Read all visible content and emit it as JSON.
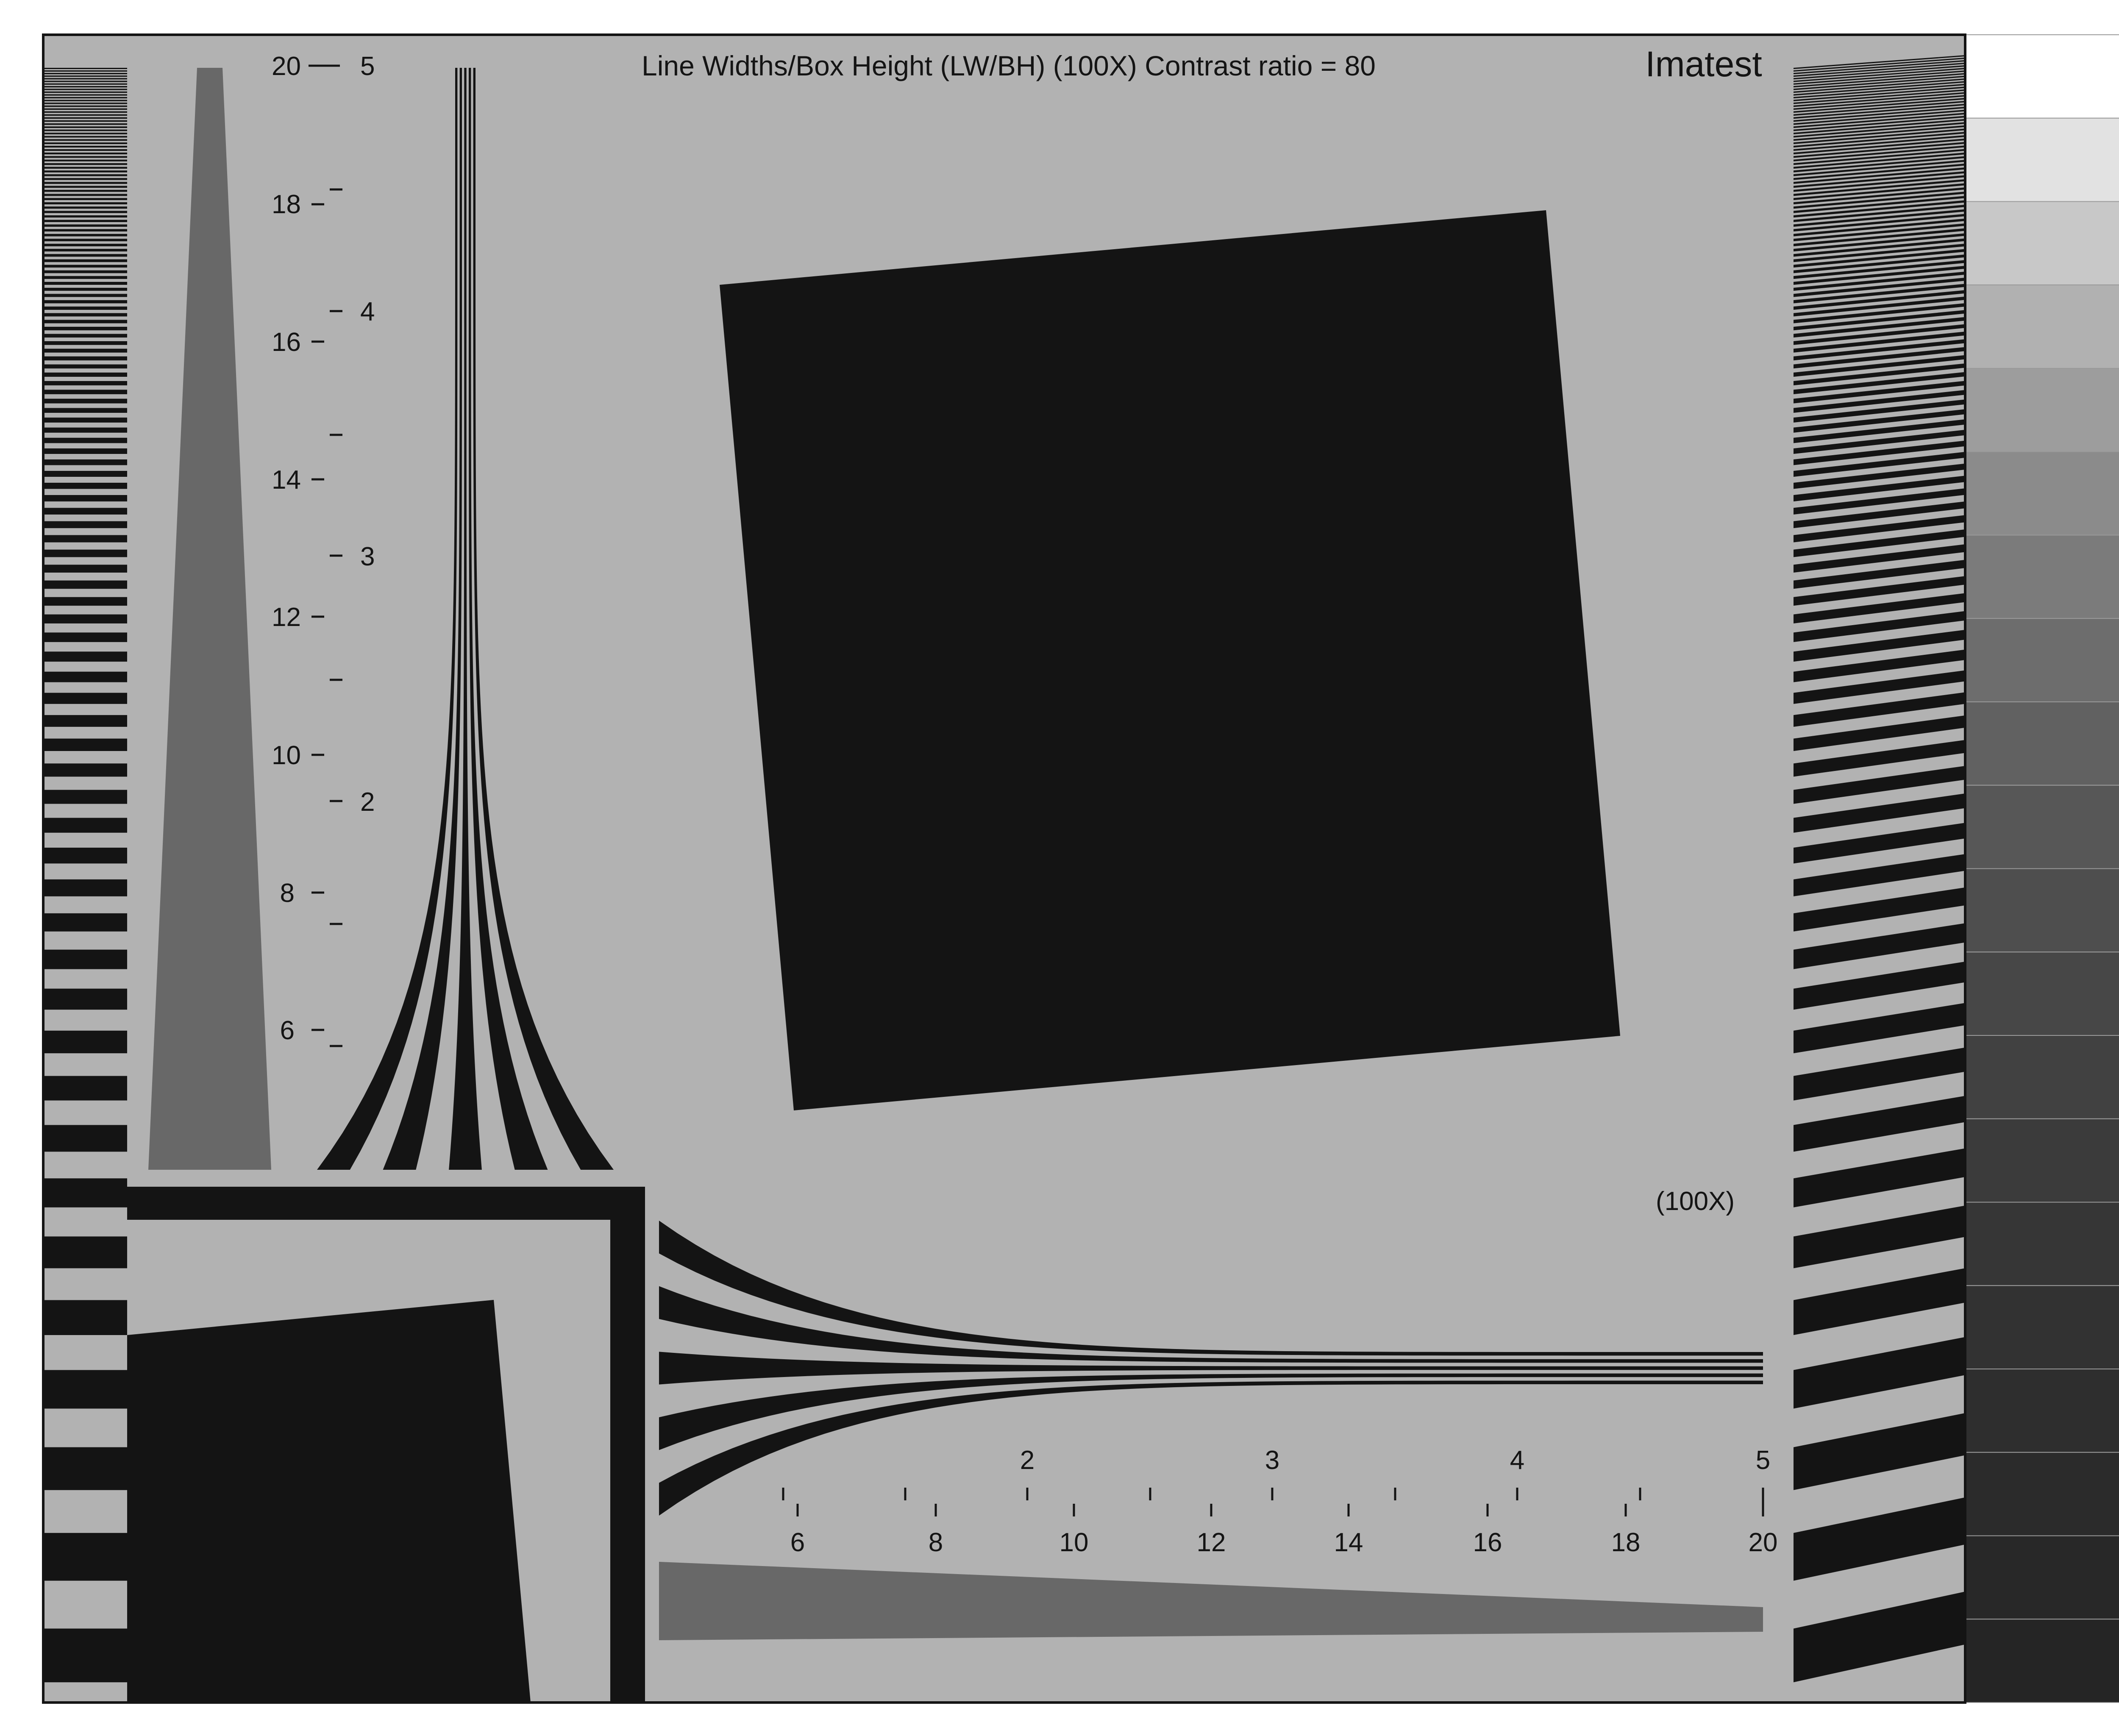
{
  "chart": {
    "title": "Line Widths/Box Height (LW/BH) (100X) Contrast ratio = 80",
    "brand": "Imatest",
    "scale_note": "(100X)"
  },
  "colors": {
    "background": "#b2b2b2",
    "dark": "#141414",
    "light_wedge": "#686868",
    "frame": "#141414"
  },
  "vertical_scale": {
    "outer_labels": [
      "20",
      "18",
      "16",
      "14",
      "12",
      "10",
      "8",
      "6"
    ],
    "inner_labels": [
      "5",
      "4",
      "3",
      "2"
    ]
  },
  "horizontal_scale": {
    "top_labels": [
      "2",
      "3",
      "4",
      "5"
    ],
    "bottom_labels": [
      "6",
      "8",
      "10",
      "12",
      "14",
      "16",
      "18",
      "20"
    ]
  },
  "gray_steps": [
    "#ffffff",
    "#e2e2e2",
    "#c8c8c8",
    "#b1b1b1",
    "#9d9d9d",
    "#8b8b8b",
    "#7b7b7b",
    "#6d6d6d",
    "#616161",
    "#575757",
    "#4e4e4e",
    "#474747",
    "#414141",
    "#3b3b3b",
    "#363636",
    "#323232",
    "#2e2e2e",
    "#2b2b2b",
    "#282828",
    "#252525"
  ]
}
